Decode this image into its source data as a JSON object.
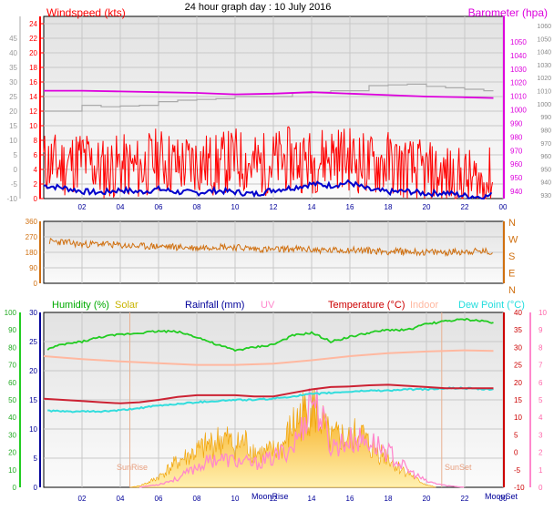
{
  "title": "24 hour graph day : 10 July 2016",
  "colors": {
    "windspeed": "#ff0000",
    "windavg": "#0000cc",
    "barometer": "#dd00dd",
    "gust": "#aaaaaa",
    "direction": "#d07010",
    "humidity": "#22cc22",
    "solar": "#f5b800",
    "uv": "#ff88cc",
    "temperature": "#cc2233",
    "indoor": "#ffb8a0",
    "dewpoint": "#33dddd",
    "rainfall": "#000099"
  },
  "chart_data": [
    {
      "type": "line",
      "name": "wind-barometer",
      "labels": {
        "left": "Windspeed (kts)",
        "right": "Barometer (hpa)"
      },
      "x_ticks": [
        "02",
        "04",
        "06",
        "08",
        "10",
        "12",
        "14",
        "16",
        "18",
        "20",
        "22",
        "00"
      ],
      "y_left_ticks": [
        "24",
        "22",
        "20",
        "18",
        "16",
        "14",
        "12",
        "10",
        "8",
        "6",
        "4",
        "2",
        "0"
      ],
      "y_left_outer_ticks": [
        "45",
        "40",
        "35",
        "30",
        "25",
        "20",
        "15",
        "10",
        "5",
        "0",
        "-5",
        "-10"
      ],
      "y_right_ticks": [
        "1050",
        "1040",
        "1030",
        "1020",
        "1010",
        "1000",
        "990",
        "980",
        "970",
        "960",
        "950",
        "940"
      ],
      "y_right_outer_ticks": [
        "1060",
        "1050",
        "1040",
        "1030",
        "1020",
        "1010",
        "1000",
        "990",
        "980",
        "970",
        "960",
        "950",
        "940",
        "930"
      ],
      "xlim": [
        0,
        24
      ],
      "ylim": [
        0,
        25
      ],
      "series": [
        {
          "key": "barometer",
          "x": [
            0,
            2,
            4,
            6,
            8,
            10,
            12,
            14,
            16,
            18,
            20,
            22,
            23.5
          ],
          "y": [
            14.8,
            14.8,
            14.7,
            14.6,
            14.5,
            14.3,
            14.4,
            14.6,
            14.4,
            14.2,
            14.0,
            13.9,
            13.8
          ]
        },
        {
          "key": "gust",
          "x": [
            0,
            1,
            2,
            3,
            4,
            5,
            6,
            7,
            8,
            9,
            10,
            11,
            12,
            13,
            14,
            15,
            16,
            17,
            18,
            19,
            20,
            21,
            22,
            23,
            23.5
          ],
          "y": [
            12.0,
            12.0,
            12.8,
            12.6,
            12.7,
            12.8,
            13.3,
            13.5,
            13.6,
            13.7,
            14.0,
            14.0,
            14.0,
            14.5,
            14.6,
            14.8,
            14.8,
            15.5,
            15.6,
            15.7,
            15.4,
            15.2,
            15.0,
            14.8,
            14.8
          ]
        },
        {
          "key": "windspeed",
          "x": [
            0,
            1,
            2,
            3,
            4,
            5,
            6,
            7,
            8,
            9,
            10,
            11,
            12,
            13,
            14,
            15,
            16,
            17,
            18,
            19,
            20,
            21,
            22,
            23,
            23.5
          ],
          "y": [
            5.0,
            4.5,
            5.5,
            4.0,
            4.5,
            4.0,
            5.5,
            4.5,
            5.0,
            4.5,
            5.5,
            4.5,
            5.0,
            5.5,
            5.0,
            6.0,
            5.5,
            4.5,
            5.0,
            4.0,
            3.5,
            3.0,
            2.5,
            2.0,
            3.0
          ]
        },
        {
          "key": "windavg",
          "x": [
            0,
            1,
            2,
            3,
            4,
            5,
            6,
            7,
            8,
            9,
            10,
            11,
            12,
            13,
            14,
            15,
            16,
            17,
            18,
            19,
            20,
            21,
            22,
            23,
            23.5
          ],
          "y": [
            1.8,
            1.5,
            1.0,
            0.8,
            1.2,
            0.9,
            1.3,
            0.9,
            0.8,
            1.1,
            0.9,
            0.6,
            1.2,
            1.5,
            2.0,
            1.8,
            2.2,
            1.2,
            0.9,
            1.0,
            0.7,
            0.8,
            0.4,
            0.2,
            0.6
          ]
        }
      ]
    },
    {
      "type": "line",
      "name": "wind-direction",
      "y_ticks": [
        "360",
        "270",
        "180",
        "90",
        "0"
      ],
      "compass": [
        "N",
        "W",
        "S",
        "E",
        "N"
      ],
      "xlim": [
        0,
        24
      ],
      "ylim": [
        0,
        360
      ],
      "series": [
        {
          "key": "direction",
          "x": [
            0,
            1,
            2,
            3,
            4,
            5,
            6,
            7,
            8,
            9,
            10,
            11,
            12,
            13,
            14,
            15,
            16,
            17,
            18,
            19,
            20,
            21,
            22,
            23,
            23.5
          ],
          "y": [
            245,
            240,
            225,
            230,
            220,
            215,
            215,
            210,
            205,
            215,
            210,
            200,
            195,
            200,
            195,
            190,
            195,
            190,
            185,
            185,
            180,
            180,
            185,
            185,
            180
          ]
        }
      ]
    },
    {
      "type": "line",
      "name": "humidity-temperature",
      "labels": {
        "humidity": "Humidity (%)",
        "solar": "Solar",
        "rainfall": "Rainfall (mm)",
        "uv": "UV",
        "temperature": "Temperature (°C)",
        "indoor": "Indoor",
        "dewpoint": "Dew Point (°C)"
      },
      "y_humidity_ticks": [
        "100",
        "90",
        "80",
        "70",
        "60",
        "50",
        "40",
        "30",
        "20",
        "10",
        "0"
      ],
      "y_rain_ticks": [
        "30",
        "25",
        "20",
        "15",
        "10",
        "5",
        "0"
      ],
      "y_temp_ticks": [
        "40",
        "35",
        "30",
        "25",
        "20",
        "15",
        "10",
        "5",
        "0",
        "-5",
        "-10"
      ],
      "y_uv_ticks": [
        "10",
        "9",
        "8",
        "7",
        "6",
        "5",
        "4",
        "3",
        "2",
        "1",
        "0"
      ],
      "annotations": [
        "SunRise",
        "SunSet",
        "MoonRise",
        "MoonSet"
      ],
      "xlim": [
        0,
        24
      ],
      "ylim": [
        0,
        30
      ],
      "series": [
        {
          "key": "humidity",
          "x": [
            0,
            1,
            2,
            3,
            4,
            5,
            6,
            7,
            8,
            9,
            10,
            11,
            12,
            13,
            14,
            15,
            16,
            17,
            18,
            19,
            20,
            21,
            22,
            23,
            23.5
          ],
          "y": [
            23.5,
            24.5,
            25.0,
            25.8,
            26.2,
            26.5,
            26.8,
            26.7,
            25.8,
            24.5,
            23.5,
            24.0,
            24.5,
            26.0,
            26.5,
            25.0,
            25.8,
            26.5,
            27.0,
            27.0,
            28.0,
            28.5,
            28.8,
            28.5,
            28.3
          ]
        },
        {
          "key": "indoor",
          "x": [
            0,
            2,
            4,
            6,
            8,
            10,
            12,
            14,
            16,
            18,
            20,
            22,
            23.5
          ],
          "y": [
            22.5,
            22.0,
            21.6,
            21.3,
            21.0,
            21.0,
            21.2,
            21.8,
            22.5,
            23.0,
            23.3,
            23.5,
            23.4
          ]
        },
        {
          "key": "temperature",
          "x": [
            0,
            1,
            2,
            3,
            4,
            5,
            6,
            7,
            8,
            9,
            10,
            11,
            12,
            13,
            14,
            15,
            16,
            17,
            18,
            19,
            20,
            21,
            22,
            23,
            23.5
          ],
          "y": [
            15.2,
            15.0,
            14.8,
            14.6,
            14.4,
            14.6,
            15.0,
            15.5,
            15.8,
            15.8,
            15.8,
            15.6,
            15.6,
            16.2,
            16.8,
            17.2,
            17.3,
            17.5,
            17.6,
            17.4,
            17.2,
            17.0,
            17.0,
            17.0,
            17.0
          ]
        },
        {
          "key": "dewpoint",
          "x": [
            0,
            1,
            2,
            3,
            4,
            5,
            6,
            7,
            8,
            9,
            10,
            11,
            12,
            13,
            14,
            15,
            16,
            17,
            18,
            19,
            20,
            21,
            22,
            23,
            23.5
          ],
          "y": [
            13.2,
            13.0,
            13.0,
            13.0,
            13.2,
            13.6,
            14.0,
            14.3,
            14.6,
            14.8,
            15.0,
            15.0,
            15.2,
            15.6,
            16.0,
            16.2,
            16.4,
            16.6,
            16.6,
            16.8,
            16.8,
            17.0,
            17.0,
            16.8,
            16.8
          ]
        },
        {
          "key": "solar",
          "x": [
            4.5,
            5,
            5.5,
            6,
            6.5,
            7,
            7.5,
            8,
            8.5,
            9,
            9.5,
            10,
            10.5,
            11,
            11.5,
            12,
            12.5,
            13,
            13.5,
            14,
            14.5,
            15,
            15.5,
            16,
            16.5,
            17,
            17.5,
            18,
            18.5,
            19,
            19.5,
            20,
            20.5
          ],
          "y": [
            0,
            0.3,
            1,
            2,
            3.5,
            5,
            6,
            7,
            8,
            9,
            9.5,
            8,
            9,
            7,
            6.5,
            7,
            8,
            12,
            14,
            16,
            13,
            9,
            10,
            9,
            11,
            8,
            7,
            6,
            4,
            3,
            1.5,
            0.5,
            0
          ]
        },
        {
          "key": "uv",
          "x": [
            5,
            6,
            7,
            8,
            9,
            10,
            11,
            12,
            13,
            13.5,
            14,
            14.5,
            15,
            16,
            17,
            18,
            19,
            20,
            21,
            22
          ],
          "y": [
            0,
            0.5,
            1.5,
            3.5,
            5,
            4.5,
            4,
            5,
            7,
            10,
            16,
            12,
            7,
            8,
            8,
            6,
            3,
            1,
            0.3,
            0
          ]
        }
      ]
    }
  ]
}
